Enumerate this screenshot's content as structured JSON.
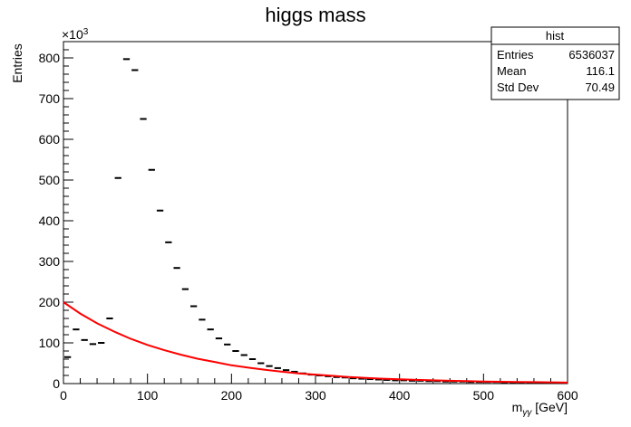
{
  "chart_data": {
    "type": "scatter",
    "title": "higgs mass",
    "xlabel_main": "m",
    "xlabel_sub": "γγ",
    "xlabel_unit": " [GeV]",
    "ylabel": "Entries",
    "y_multiplier_text": "×10",
    "y_multiplier_exp": "3",
    "xlim": [
      0,
      600
    ],
    "ylim": [
      0,
      840
    ],
    "x_ticks": [
      0,
      100,
      200,
      300,
      400,
      500,
      600
    ],
    "y_ticks": [
      0,
      100,
      200,
      300,
      400,
      500,
      600,
      700,
      800
    ],
    "grid": false,
    "series": [
      {
        "kind": "histogram-markers",
        "color": "#000000",
        "bin_width": 10,
        "x": [
          5,
          15,
          25,
          35,
          45,
          55,
          65,
          75,
          85,
          95,
          105,
          115,
          125,
          135,
          145,
          155,
          165,
          175,
          185,
          195,
          205,
          215,
          225,
          235,
          245,
          255,
          265,
          275,
          285,
          295,
          305,
          315,
          325,
          335,
          345,
          355,
          365,
          375,
          385,
          395,
          405,
          415,
          425,
          435,
          445,
          455,
          465,
          475,
          485,
          495,
          505,
          515,
          525,
          535,
          545,
          555,
          565,
          575,
          585,
          595
        ],
        "y": [
          65,
          133,
          107,
          97,
          100,
          160,
          505,
          797,
          770,
          650,
          525,
          425,
          347,
          284,
          232,
          190,
          157,
          133,
          111,
          96,
          80,
          70,
          60,
          50,
          43,
          38,
          33,
          29,
          25,
          22,
          20,
          18,
          16,
          15,
          13,
          12,
          11,
          10,
          9,
          8,
          8,
          7,
          7,
          6,
          6,
          5,
          5,
          5,
          4,
          4,
          4,
          4,
          3,
          3,
          3,
          3,
          3,
          2,
          2,
          2
        ]
      },
      {
        "kind": "fit-line",
        "color": "#ff0000",
        "x": [
          0,
          20,
          40,
          60,
          80,
          100,
          120,
          140,
          160,
          180,
          200,
          220,
          240,
          260,
          280,
          300,
          320,
          340,
          360,
          380,
          400,
          420,
          440,
          460,
          480,
          500,
          520,
          540,
          560,
          580,
          600
        ],
        "y": [
          200,
          172,
          148,
          128,
          110,
          95,
          82,
          71,
          61,
          53,
          45,
          39,
          34,
          29,
          25,
          22,
          19,
          16,
          14,
          12,
          10.5,
          9,
          8,
          7,
          6,
          5,
          4.5,
          4,
          3.5,
          3,
          2.5
        ]
      }
    ],
    "stats_box": {
      "title": "hist",
      "rows": [
        {
          "label": "Entries",
          "value": "6536037"
        },
        {
          "label": "Mean",
          "value": "116.1"
        },
        {
          "label": "Std Dev",
          "value": "70.49"
        }
      ]
    }
  }
}
